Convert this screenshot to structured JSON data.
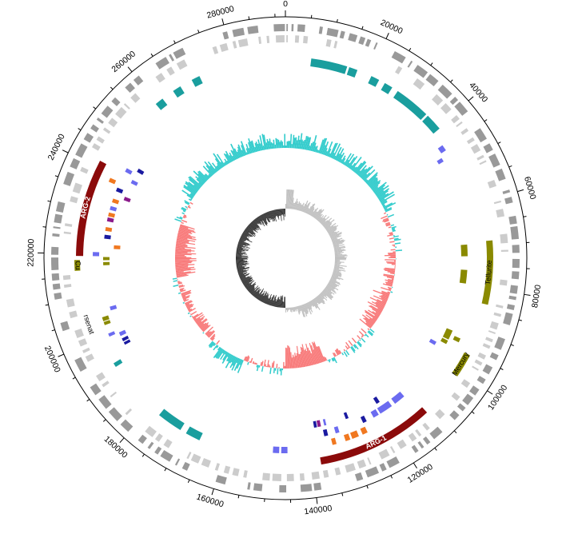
{
  "map": {
    "ticks": [
      {
        "pos": 0,
        "label": "0"
      },
      {
        "pos": 20000,
        "label": "20000"
      },
      {
        "pos": 40000,
        "label": "40000"
      },
      {
        "pos": 60000,
        "label": "60000"
      },
      {
        "pos": 80000,
        "label": "80000"
      },
      {
        "pos": 100000,
        "label": "100000"
      },
      {
        "pos": 120000,
        "label": "120000"
      },
      {
        "pos": 140000,
        "label": "140000"
      },
      {
        "pos": 160000,
        "label": "160000"
      },
      {
        "pos": 180000,
        "label": "180000"
      },
      {
        "pos": 200000,
        "label": "200000"
      },
      {
        "pos": 220000,
        "label": "220000"
      },
      {
        "pos": 240000,
        "label": "240000"
      },
      {
        "pos": 260000,
        "label": "260000"
      },
      {
        "pos": 280000,
        "label": "280000"
      }
    ],
    "regions": [
      {
        "label": "ARG-1",
        "start": 111500,
        "end": 138000,
        "color": "#8b0a0a",
        "text_color": "#ffffff"
      },
      {
        "label": "ARG-2",
        "start": 219500,
        "end": 241500,
        "color": "#8b0a0a",
        "text_color": "#ffffff"
      },
      {
        "label": "Tellurite",
        "start": 69000,
        "end": 83500,
        "color": "#8a8a00",
        "text_color": "#000000"
      },
      {
        "label": "Mercury",
        "start": 95500,
        "end": 101000,
        "color": "#8a8a00",
        "text_color": "#000000"
      },
      {
        "label": "Cu",
        "start": 216200,
        "end": 218600,
        "color": "#8a8a00",
        "text_color": "#000000"
      },
      {
        "label": "Arsenate",
        "start": 201500,
        "end": 206500,
        "color": "#8a8a00",
        "text_color": "#000000"
      }
    ],
    "colors": {
      "outer_dark": "#999999",
      "outer_light": "#cccccc",
      "teal": "#1a9e9e",
      "blue": "#6b6bf0",
      "navy": "#1a1aa0",
      "purple": "#8b1a8b",
      "orange": "#f07820",
      "olive": "#8a8a00",
      "gc_pos": "#33cccc",
      "gc_neg": "#f87a7a",
      "skew_pos": "#c0c0c0",
      "skew_neg": "#333333"
    }
  }
}
